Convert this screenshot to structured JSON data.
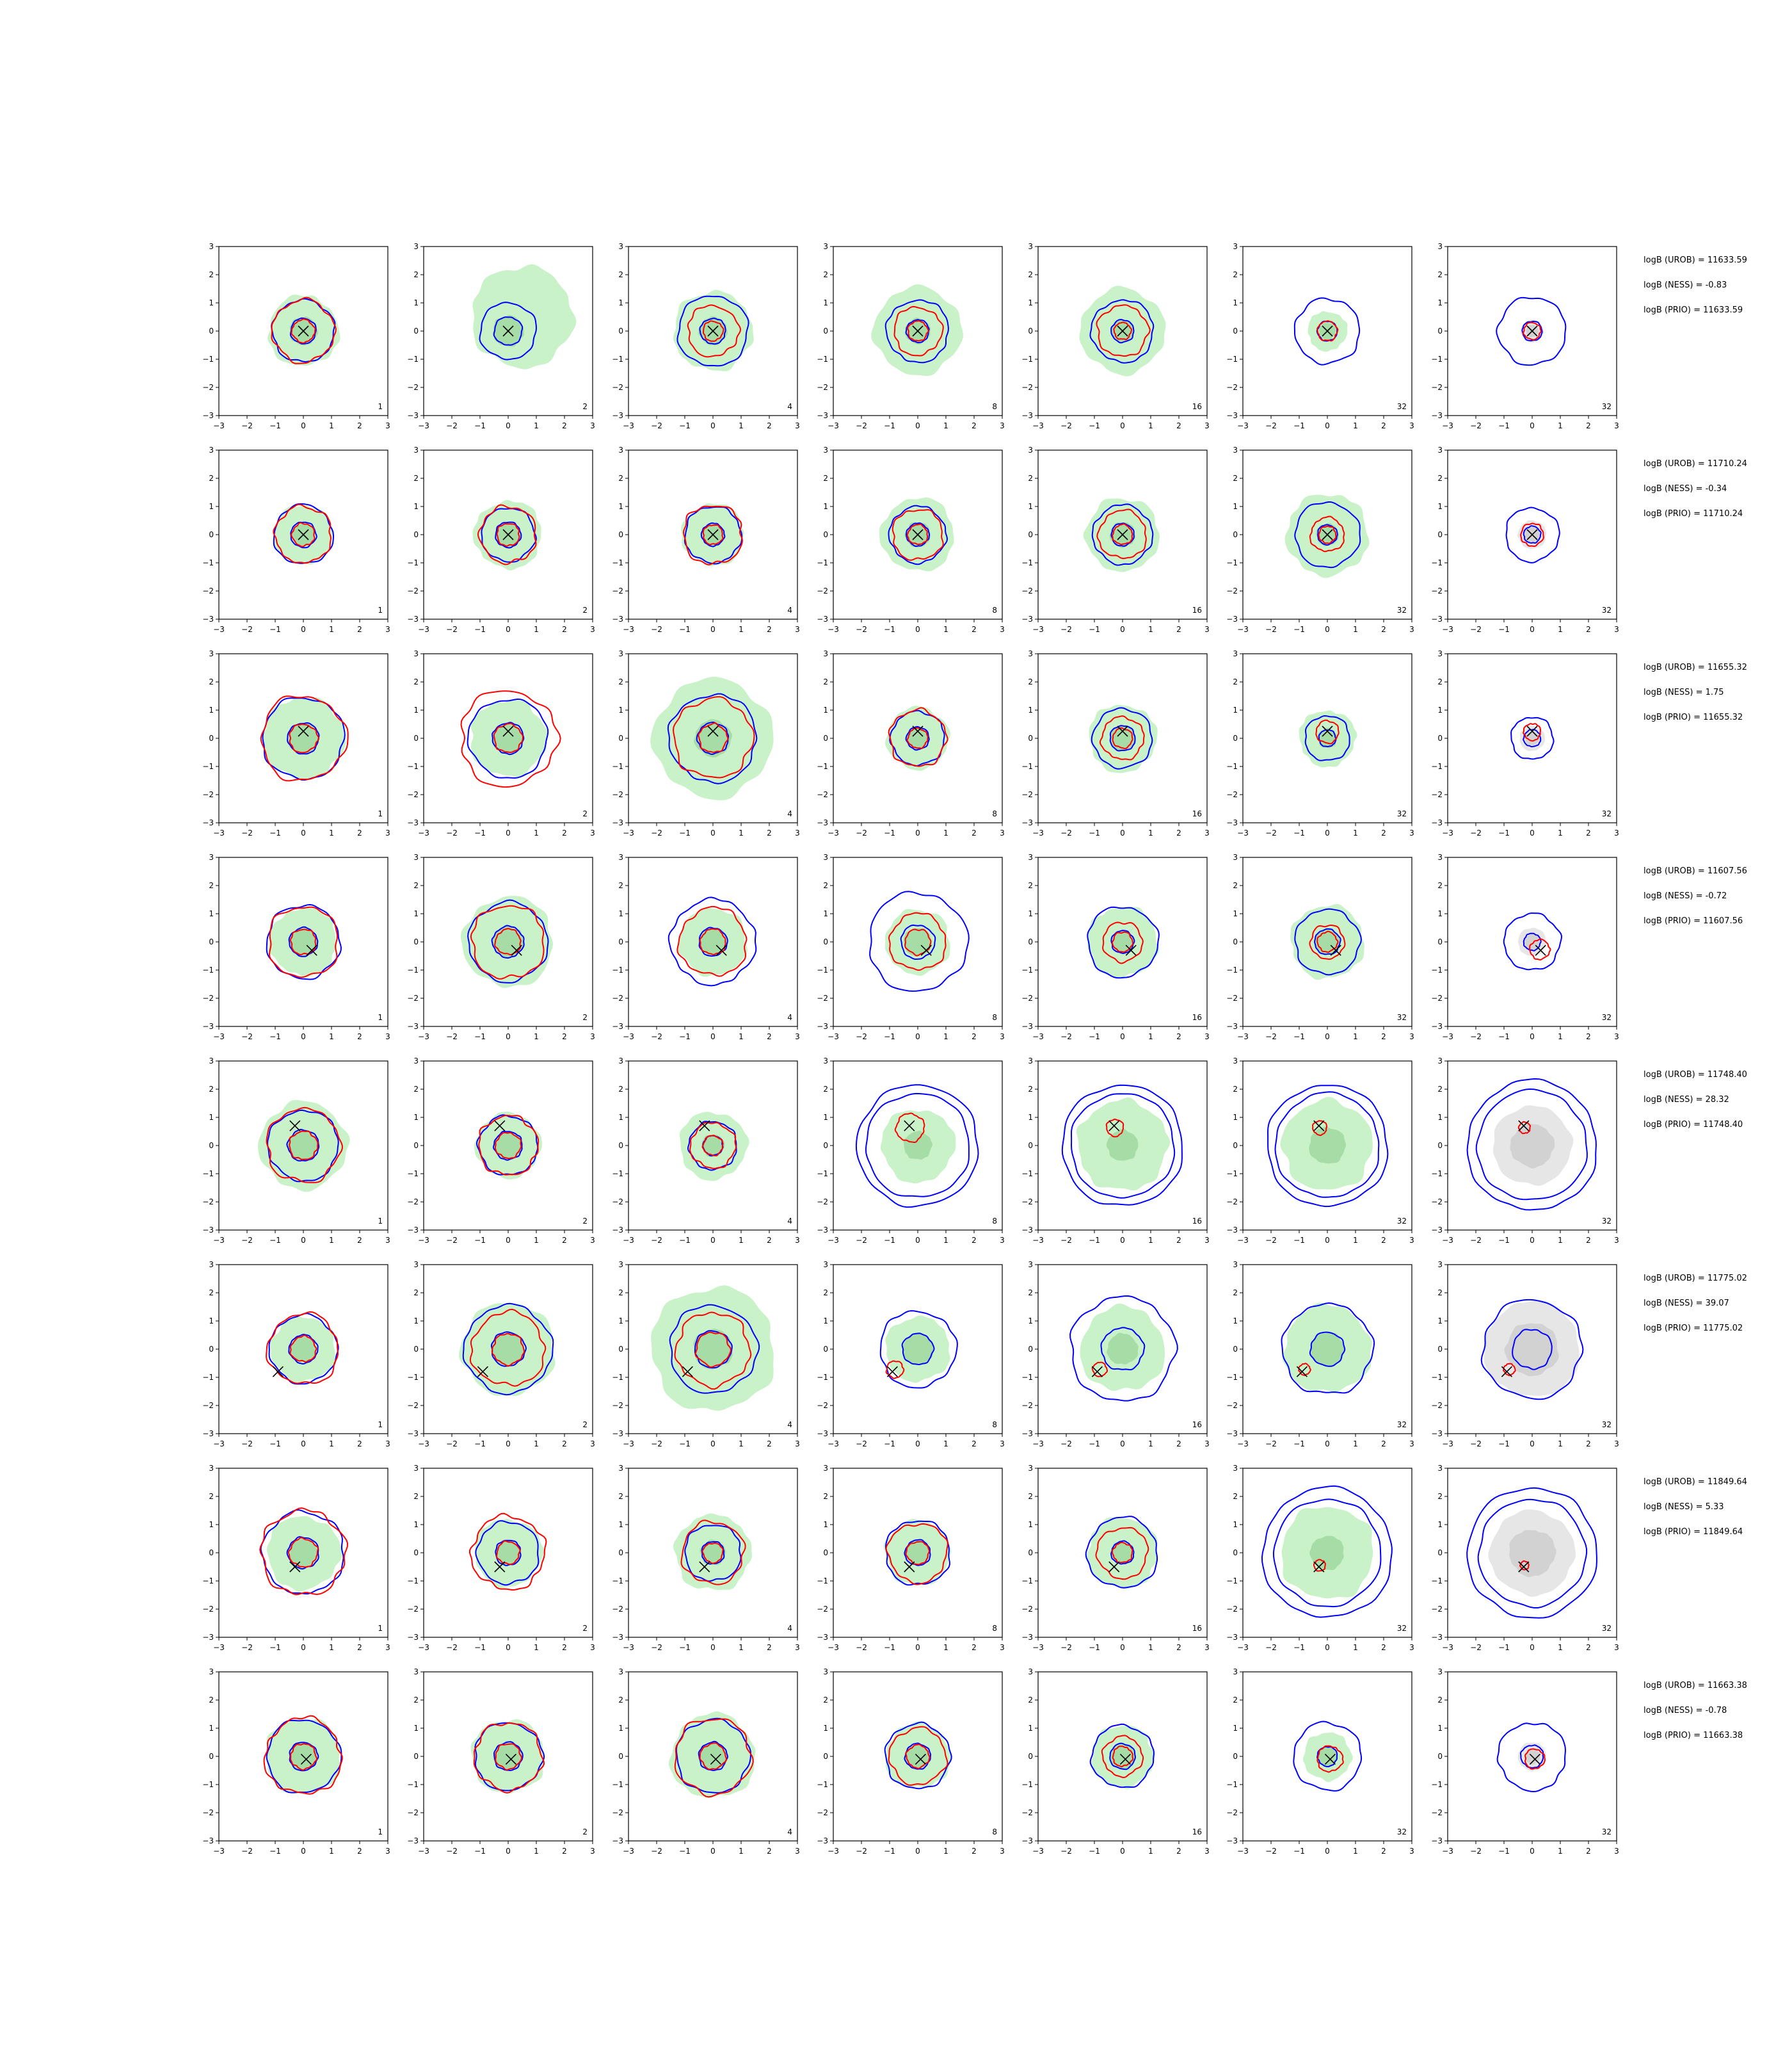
{
  "chart_data": {
    "type": "contour-grid",
    "xlim": [
      -3,
      3
    ],
    "ylim": [
      -3,
      3
    ],
    "xticks": [
      "−3",
      "−2",
      "−1",
      "0",
      "1",
      "2",
      "3"
    ],
    "yticks": [
      "3",
      "2",
      "1",
      "0",
      "−1",
      "−2",
      "−3"
    ],
    "column_labels": [
      "1",
      "2",
      "4",
      "8",
      "16",
      "32",
      "32"
    ],
    "grid": false,
    "colors": {
      "blue_contour": "#0000ff",
      "red_contour": "#ff0000",
      "green_fill": "#c9f2c9",
      "green_fill_dark": "#a6dca6",
      "gray_fill": "#e6e6e6",
      "gray_fill_dark": "#d2d2d2",
      "marker": "#000000"
    },
    "rows": [
      {
        "marker": [
          0.0,
          0.0
        ],
        "stats": [
          "logB (UROB) = 11633.59",
          "logB (NESS) = -0.83",
          "logB (PRIO) = 11633.59"
        ],
        "panels": [
          {
            "green": 1.25,
            "green_inner": 0.5,
            "blue": [
              1.1,
              0.45
            ],
            "red": [
              1.1,
              0.4
            ],
            "gray": 0,
            "seed": 1
          },
          {
            "green": 1.8,
            "green_inner": 0.55,
            "blue": [
              1.0,
              0.5
            ],
            "red": [],
            "gray": 0,
            "seed": 2,
            "green_shift": [
              0.5,
              0.5
            ]
          },
          {
            "green": 1.4,
            "green_inner": 0.5,
            "blue": [
              1.25,
              0.45
            ],
            "red": [
              0.9,
              0.35
            ],
            "gray": 0,
            "seed": 3
          },
          {
            "green": 1.55,
            "green_inner": 0.45,
            "blue": [
              1.1,
              0.4
            ],
            "red": [
              0.85,
              0.35
            ],
            "gray": 0,
            "seed": 4
          },
          {
            "green": 1.5,
            "green_inner": 0.4,
            "blue": [
              1.1,
              0.4
            ],
            "red": [
              0.9,
              0.3
            ],
            "gray": 0,
            "seed": 5
          },
          {
            "green": 0.7,
            "green_inner": 0.3,
            "blue": [
              1.15,
              0.35
            ],
            "red": [
              0.35
            ],
            "gray": 0,
            "seed": 6
          },
          {
            "green": 0,
            "green_inner": 0,
            "blue": [
              1.2,
              0.35
            ],
            "red": [
              0.3
            ],
            "gray": 0.4,
            "seed": 7
          }
        ]
      },
      {
        "marker": [
          0.0,
          0.0
        ],
        "stats": [
          "logB (UROB) = 11710.24",
          "logB (NESS) = -0.34",
          "logB (PRIO) = 11710.24"
        ],
        "panels": [
          {
            "green": 1.05,
            "green_inner": 0.4,
            "blue": [
              1.05,
              0.45
            ],
            "red": [
              1.0,
              0.4
            ],
            "gray": 0,
            "seed": 11
          },
          {
            "green": 1.2,
            "green_inner": 0.45,
            "blue": [
              0.95,
              0.45
            ],
            "red": [
              1.0,
              0.4
            ],
            "gray": 0,
            "seed": 12
          },
          {
            "green": 1.1,
            "green_inner": 0.4,
            "blue": [
              1.0,
              0.4
            ],
            "red": [
              1.05,
              0.35
            ],
            "gray": 0,
            "seed": 13
          },
          {
            "green": 1.3,
            "green_inner": 0.45,
            "blue": [
              1.0,
              0.4
            ],
            "red": [
              0.9,
              0.35
            ],
            "gray": 0,
            "seed": 14
          },
          {
            "green": 1.3,
            "green_inner": 0.45,
            "blue": [
              1.05,
              0.4
            ],
            "red": [
              0.85,
              0.35
            ],
            "gray": 0,
            "seed": 15
          },
          {
            "green": 1.45,
            "green_inner": 0.4,
            "blue": [
              1.15,
              0.35
            ],
            "red": [
              0.6,
              0.3
            ],
            "gray": 0,
            "seed": 16
          },
          {
            "green": 0,
            "green_inner": 0,
            "blue": [
              0.95,
              0.3
            ],
            "red": [
              0.4
            ],
            "gray": 0.5,
            "seed": 17
          }
        ]
      },
      {
        "marker": [
          0.0,
          0.25
        ],
        "stats": [
          "logB (UROB) = 11655.32",
          "logB (NESS) = 1.75",
          "logB (PRIO) = 11655.32"
        ],
        "panels": [
          {
            "green": 1.45,
            "green_inner": 0.55,
            "blue": [
              1.45,
              0.55
            ],
            "red": [
              1.5,
              0.5
            ],
            "gray": 0,
            "seed": 21
          },
          {
            "green": 1.35,
            "green_inner": 0.55,
            "blue": [
              1.4,
              0.55
            ],
            "red": [
              1.7,
              0.5
            ],
            "gray": 0,
            "seed": 22
          },
          {
            "green": 2.1,
            "green_inner": 0.65,
            "blue": [
              1.55,
              0.55
            ],
            "red": [
              1.4,
              0.5
            ],
            "gray": 0,
            "seed": 23
          },
          {
            "green": 1.1,
            "green_inner": 0.4,
            "blue": [
              0.95,
              0.4
            ],
            "red": [
              1.0,
              0.35
            ],
            "gray": 0,
            "seed": 24
          },
          {
            "green": 1.2,
            "green_inner": 0.45,
            "blue": [
              1.05,
              0.45
            ],
            "red": [
              0.75,
              0.35
            ],
            "gray": 0,
            "seed": 25
          },
          {
            "green": 1.0,
            "green_inner": 0.35,
            "blue": [
              0.8,
              0.3
            ],
            "red": [
              0.4
            ],
            "gray": 0,
            "seed": 26
          },
          {
            "green": 0,
            "green_inner": 0,
            "blue": [
              0.75,
              0.3
            ],
            "red": [
              0.3
            ],
            "gray": 0.45,
            "seed": 27
          }
        ]
      },
      {
        "marker": [
          0.3,
          -0.3
        ],
        "stats": [
          "logB (UROB) = 11607.56",
          "logB (NESS) = -0.72",
          "logB (PRIO) = 11607.56"
        ],
        "panels": [
          {
            "green": 1.2,
            "green_inner": 0.5,
            "blue": [
              1.3,
              0.5
            ],
            "red": [
              1.25,
              0.45
            ],
            "gray": 0,
            "seed": 31
          },
          {
            "green": 1.6,
            "green_inner": 0.55,
            "blue": [
              1.4,
              0.55
            ],
            "red": [
              1.3,
              0.45
            ],
            "gray": 0,
            "seed": 32
          },
          {
            "green": 1.2,
            "green_inner": 0.5,
            "blue": [
              1.5,
              0.5
            ],
            "red": [
              1.2,
              0.45
            ],
            "gray": 0,
            "seed": 33
          },
          {
            "green": 1.15,
            "green_inner": 0.5,
            "blue": [
              1.75,
              0.6
            ],
            "red": [
              1.0,
              0.45
            ],
            "gray": 0,
            "seed": 34
          },
          {
            "green": 1.25,
            "green_inner": 0.4,
            "blue": [
              1.25,
              0.4
            ],
            "red": [
              0.7,
              0.35
            ],
            "gray": 0,
            "seed": 35
          },
          {
            "green": 1.3,
            "green_inner": 0.45,
            "blue": [
              1.15,
              0.45
            ],
            "red": [
              0.6,
              0.35
            ],
            "gray": 0,
            "seed": 36
          },
          {
            "green": 0,
            "green_inner": 0,
            "blue": [
              1.0,
              0.3
            ],
            "red": [
              0.35
            ],
            "gray": 0.5,
            "seed": 37
          }
        ]
      },
      {
        "marker": [
          -0.3,
          0.7
        ],
        "stats": [
          "logB (UROB) = 11748.40",
          "logB (NESS) = 28.32",
          "logB (PRIO) = 11748.40"
        ],
        "panels": [
          {
            "green": 1.55,
            "green_inner": 0.55,
            "blue": [
              1.25,
              0.55
            ],
            "red": [
              1.3,
              0.5
            ],
            "gray": 0,
            "seed": 41
          },
          {
            "green": 1.15,
            "green_inner": 0.5,
            "blue": [
              1.05,
              0.5
            ],
            "red": [
              1.05,
              0.45
            ],
            "gray": 0,
            "seed": 42
          },
          {
            "green": 1.2,
            "green_inner": 0.4,
            "blue": [
              0.85,
              0.35
            ],
            "red": [
              0.8,
              0.35
            ],
            "gray": 0,
            "seed": 43
          },
          {
            "green": 1.3,
            "green_inner": 0.5,
            "blue": [
              2.15,
              1.85
            ],
            "red": [
              0.5
            ],
            "gray": 0,
            "seed": 44,
            "ring": true
          },
          {
            "green": 1.6,
            "green_inner": 0.55,
            "blue": [
              2.15,
              1.85
            ],
            "red": [
              0.3
            ],
            "gray": 0,
            "seed": 45,
            "ring": true
          },
          {
            "green": 1.6,
            "green_inner": 0.65,
            "blue": [
              2.15,
              1.85
            ],
            "red": [
              0.25
            ],
            "gray": 0,
            "seed": 46,
            "ring": true
          },
          {
            "green": 0,
            "green_inner": 0,
            "blue": [
              2.3,
              1.95
            ],
            "red": [
              0.2
            ],
            "gray": 1.4,
            "seed": 47,
            "ring": true
          }
        ]
      },
      {
        "marker": [
          -0.9,
          -0.8
        ],
        "stats": [
          "logB (UROB) = 11775.02",
          "logB (NESS) = 39.07",
          "logB (PRIO) = 11775.02"
        ],
        "panels": [
          {
            "green": 1.15,
            "green_inner": 0.45,
            "blue": [
              1.2,
              0.5
            ],
            "red": [
              1.25,
              0.45
            ],
            "gray": 0,
            "seed": 51
          },
          {
            "green": 1.65,
            "green_inner": 0.6,
            "blue": [
              1.55,
              0.6
            ],
            "red": [
              1.3,
              0.55
            ],
            "gray": 0,
            "seed": 52
          },
          {
            "green": 2.2,
            "green_inner": 0.7,
            "blue": [
              1.55,
              0.65
            ],
            "red": [
              1.3,
              0.6
            ],
            "gray": 0,
            "seed": 53
          },
          {
            "green": 1.15,
            "green_inner": 0.55,
            "blue": [
              1.35,
              0.55
            ],
            "red": [
              0.3
            ],
            "gray": 0,
            "seed": 54
          },
          {
            "green": 1.5,
            "green_inner": 0.55,
            "blue": [
              1.85,
              0.75
            ],
            "red": [
              0.25
            ],
            "gray": 0,
            "seed": 55
          },
          {
            "green": 1.55,
            "green_inner": 0.6,
            "blue": [
              1.6,
              0.6
            ],
            "red": [
              0.2
            ],
            "gray": 0,
            "seed": 56
          },
          {
            "green": 0,
            "green_inner": 0,
            "blue": [
              1.75,
              0.7
            ],
            "red": [
              0.2
            ],
            "gray": 1.7,
            "seed": 57
          }
        ]
      },
      {
        "marker": [
          -0.3,
          -0.5
        ],
        "stats": [
          "logB (UROB) = 11849.64",
          "logB (NESS) = 5.33",
          "logB (PRIO) = 11849.64"
        ],
        "panels": [
          {
            "green": 1.3,
            "green_inner": 0.5,
            "blue": [
              1.45,
              0.55
            ],
            "red": [
              1.5,
              0.5
            ],
            "gray": 0,
            "seed": 61
          },
          {
            "green": 1.2,
            "green_inner": 0.45,
            "blue": [
              1.1,
              0.45
            ],
            "red": [
              1.3,
              0.4
            ],
            "gray": 0,
            "seed": 62
          },
          {
            "green": 1.35,
            "green_inner": 0.45,
            "blue": [
              1.0,
              0.4
            ],
            "red": [
              1.1,
              0.35
            ],
            "gray": 0,
            "seed": 63
          },
          {
            "green": 1.15,
            "green_inner": 0.45,
            "blue": [
              1.15,
              0.45
            ],
            "red": [
              1.05,
              0.4
            ],
            "gray": 0,
            "seed": 64
          },
          {
            "green": 1.25,
            "green_inner": 0.4,
            "blue": [
              1.25,
              0.4
            ],
            "red": [
              0.9,
              0.35
            ],
            "gray": 0,
            "seed": 65
          },
          {
            "green": 1.65,
            "green_inner": 0.6,
            "blue": [
              2.3,
              1.9
            ],
            "red": [
              0.2
            ],
            "gray": 0,
            "seed": 66,
            "ring": true
          },
          {
            "green": 0,
            "green_inner": 0,
            "blue": [
              2.3,
              1.9
            ],
            "red": [
              0.15
            ],
            "gray": 1.5,
            "seed": 67,
            "ring": true
          }
        ]
      },
      {
        "marker": [
          0.1,
          -0.1
        ],
        "stats": [
          "logB (UROB) = 11663.38",
          "logB (NESS) = -0.78",
          "logB (PRIO) = 11663.38"
        ],
        "panels": [
          {
            "green": 1.35,
            "green_inner": 0.5,
            "blue": [
              1.3,
              0.5
            ],
            "red": [
              1.35,
              0.45
            ],
            "gray": 0,
            "seed": 71
          },
          {
            "green": 1.3,
            "green_inner": 0.5,
            "blue": [
              1.2,
              0.5
            ],
            "red": [
              1.2,
              0.45
            ],
            "gray": 0,
            "seed": 72
          },
          {
            "green": 1.5,
            "green_inner": 0.5,
            "blue": [
              1.3,
              0.5
            ],
            "red": [
              1.35,
              0.45
            ],
            "gray": 0,
            "seed": 73
          },
          {
            "green": 1.15,
            "green_inner": 0.45,
            "blue": [
              1.15,
              0.45
            ],
            "red": [
              1.0,
              0.4
            ],
            "gray": 0,
            "seed": 74
          },
          {
            "green": 1.1,
            "green_inner": 0.45,
            "blue": [
              1.1,
              0.45
            ],
            "red": [
              0.7,
              0.35
            ],
            "gray": 0,
            "seed": 75
          },
          {
            "green": 0.85,
            "green_inner": 0.35,
            "blue": [
              1.2,
              0.35
            ],
            "red": [
              0.45
            ],
            "gray": 0,
            "seed": 76
          },
          {
            "green": 0,
            "green_inner": 0,
            "blue": [
              1.2,
              0.4
            ],
            "red": [
              0.35
            ],
            "gray": 0.5,
            "seed": 77
          }
        ]
      }
    ]
  }
}
